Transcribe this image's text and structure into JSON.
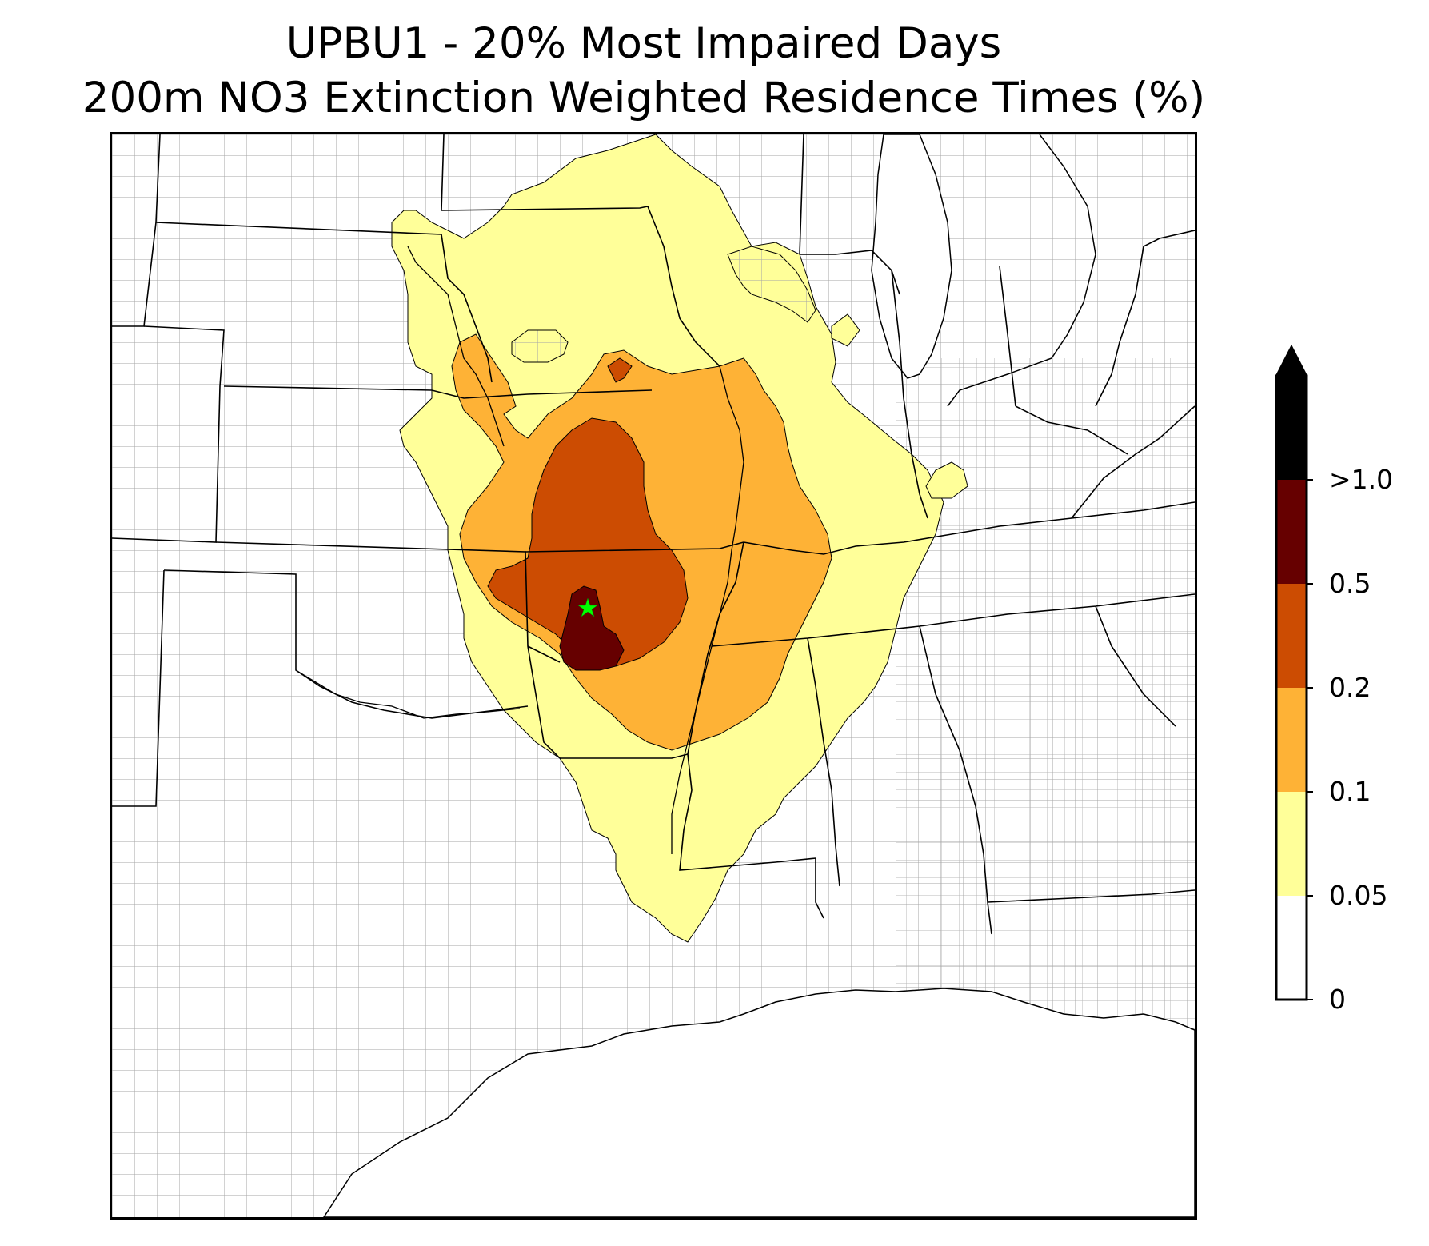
{
  "title_line1": "UPBU1 - 20% Most Impaired Days",
  "title_line2": "200m NO3 Extinction Weighted Residence Times (%)",
  "colorbar": {
    "labels": [
      "0",
      "0.05",
      "0.1",
      "0.2",
      "0.5",
      ">1.0"
    ],
    "bins": [
      {
        "range": "0-0.05",
        "color": "#ffffff"
      },
      {
        "range": "0.05-0.1",
        "color": "#ffff99"
      },
      {
        "range": "0.1-0.2",
        "color": "#feb236"
      },
      {
        "range": "0.2-0.5",
        "color": "#cc4c02"
      },
      {
        "range": "0.5-1.0",
        "color": "#660000"
      },
      {
        "range": ">1.0",
        "color": "#000000"
      }
    ],
    "extend": "max"
  },
  "site_marker": {
    "symbol": "star",
    "color": "#00ff00"
  },
  "map_colors": {
    "state_border": "#000000",
    "county_border": "#999999",
    "contour_edge": "#000000"
  }
}
